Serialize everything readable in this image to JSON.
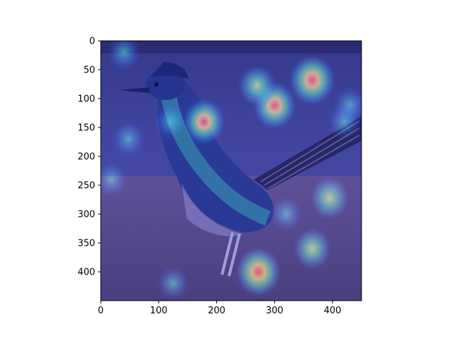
{
  "figure": {
    "x_axis": {
      "range": [
        0,
        450
      ],
      "ticks": [
        0,
        100,
        200,
        300,
        400
      ]
    },
    "y_axis": {
      "range": [
        0,
        450
      ],
      "inverted": true,
      "ticks": [
        0,
        50,
        100,
        150,
        200,
        250,
        300,
        350,
        400
      ]
    },
    "heatmap": {
      "colormap": "jet",
      "opacity": 0.5,
      "subject": "roadrunner bird on dirt ground",
      "hotspots": [
        {
          "x": 365,
          "y": 68,
          "intensity": 1.0
        },
        {
          "x": 300,
          "y": 112,
          "intensity": 0.85
        },
        {
          "x": 272,
          "y": 400,
          "intensity": 0.95
        },
        {
          "x": 178,
          "y": 140,
          "intensity": 0.8
        },
        {
          "x": 270,
          "y": 78,
          "intensity": 0.6
        },
        {
          "x": 395,
          "y": 272,
          "intensity": 0.65
        },
        {
          "x": 365,
          "y": 360,
          "intensity": 0.6
        },
        {
          "x": 430,
          "y": 112,
          "intensity": 0.45
        },
        {
          "x": 48,
          "y": 170,
          "intensity": 0.4
        },
        {
          "x": 40,
          "y": 20,
          "intensity": 0.45
        },
        {
          "x": 18,
          "y": 240,
          "intensity": 0.35
        },
        {
          "x": 125,
          "y": 420,
          "intensity": 0.35
        },
        {
          "x": 420,
          "y": 140,
          "intensity": 0.4
        },
        {
          "x": 120,
          "y": 140,
          "intensity": 0.35
        },
        {
          "x": 320,
          "y": 300,
          "intensity": 0.4
        }
      ]
    }
  }
}
